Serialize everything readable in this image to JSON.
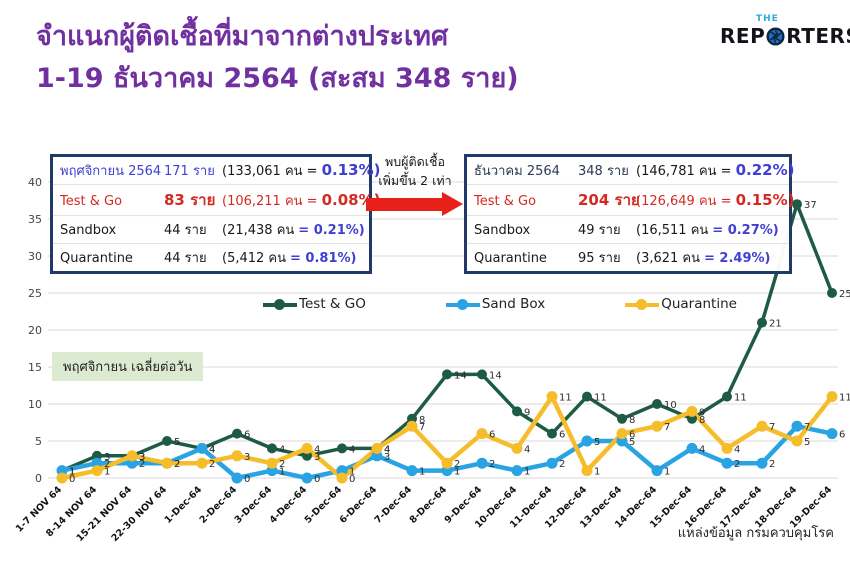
{
  "header": {
    "title_line1": "จำแนกผู้ติดเชื้อที่มาจากต่างประเทศ",
    "title_line2": "1-19 ธันวาคม 2564 (สะสม 348 ราย)",
    "title_color": "#7030a0",
    "logo": {
      "top": "THE",
      "left": "REP",
      "right": "RTERS"
    }
  },
  "boxes": {
    "november": {
      "rows": [
        {
          "name": "พฤศจิกายน 2564",
          "cases": "171 ราย",
          "pop": "(133,061 คน =",
          "pct": "0.13%)"
        },
        {
          "name": "Test & Go",
          "cases": "83 ราย",
          "pop": "(106,211 คน =",
          "pct": "0.08%)"
        },
        {
          "name": "Sandbox",
          "cases": "44 ราย",
          "pop": "(21,438 คน",
          "pct": "= 0.21%)"
        },
        {
          "name": "Quarantine",
          "cases": "44 ราย",
          "pop": "(5,412 คน",
          "pct": "= 0.81%)"
        }
      ]
    },
    "december": {
      "rows": [
        {
          "name": "ธันวาคม 2564",
          "cases": "348 ราย",
          "pop": "(146,781 คน =",
          "pct": "0.22%)"
        },
        {
          "name": "Test & Go",
          "cases": "204 ราย",
          "pop": "(126,649 คน =",
          "pct": "0.15%)"
        },
        {
          "name": "Sandbox",
          "cases": "49 ราย",
          "pop": "(16,511 คน",
          "pct": "= 0.27%)"
        },
        {
          "name": "Quarantine",
          "cases": "95 ราย",
          "pop": "(3,621 คน",
          "pct": "= 2.49%)"
        }
      ]
    }
  },
  "arrow": {
    "line1": "พบผู้ติดเชื้อ",
    "line2": "เพิ่มขึ้น 2 เท่า",
    "color": "#e8201a"
  },
  "chart_data": {
    "type": "line",
    "title": "จำแนกผู้ติดเชื้อที่มาจากต่างประเทศ 1-19 ธันวาคม 2564 (สะสม 348 ราย)",
    "categories": [
      "1-7 NOV 64",
      "8-14 NOV 64",
      "15-21 NOV 64",
      "22-30 NOV 64",
      "1-Dec-64",
      "2-Dec-64",
      "3-Dec-64",
      "4-Dec-64",
      "5-Dec-64",
      "6-Dec-64",
      "7-Dec-64",
      "8-Dec-64",
      "9-Dec-64",
      "10-Dec-64",
      "11-Dec-64",
      "12-Dec-64",
      "13-Dec-64",
      "14-Dec-64",
      "15-Dec-64",
      "16-Dec-64",
      "17-Dec-64",
      "18-Dec-64",
      "19-Dec-64"
    ],
    "series": [
      {
        "name": "Test & GO",
        "color": "#1e5b45",
        "line_width": 3.5,
        "marker_r": 5,
        "values": [
          1,
          3,
          3,
          5,
          4,
          6,
          4,
          3,
          4,
          4,
          8,
          14,
          14,
          9,
          6,
          11,
          8,
          10,
          8,
          11,
          21,
          37,
          25
        ]
      },
      {
        "name": "Sand Box",
        "color": "#2aa3e2",
        "line_width": 4.5,
        "marker_r": 5.5,
        "values": [
          1,
          2,
          2,
          2,
          4,
          0,
          1,
          0,
          1,
          3,
          1,
          1,
          2,
          1,
          2,
          5,
          5,
          1,
          4,
          2,
          2,
          7,
          6
        ]
      },
      {
        "name": "Quarantine",
        "color": "#f6bd2b",
        "line_width": 4.5,
        "marker_r": 5.5,
        "values": [
          0,
          1,
          3,
          2,
          2,
          3,
          2,
          4,
          0,
          4,
          7,
          2,
          6,
          4,
          11,
          1,
          6,
          7,
          9,
          4,
          7,
          5,
          11
        ]
      }
    ],
    "ylim": [
      0,
      40
    ],
    "ytick_step": 5,
    "grid": true,
    "legend": [
      "Test & GO",
      "Sand Box",
      "Quarantine"
    ],
    "legend_position": "inside-top",
    "annotation": "พฤศจิกายน เฉลี่ยต่อวัน",
    "source": "แหล่งข้อมูล กรมควบคุมโรค"
  }
}
